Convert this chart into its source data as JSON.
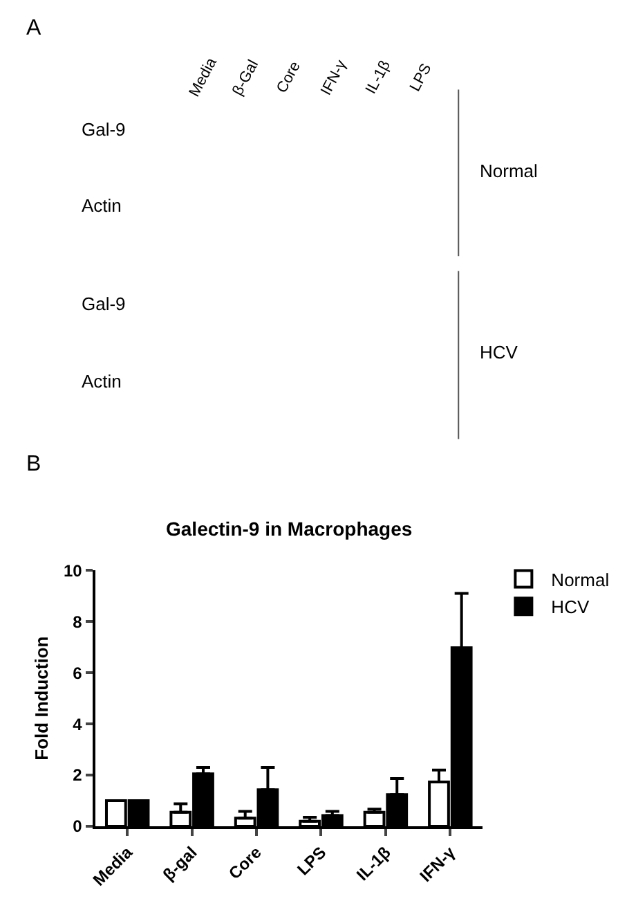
{
  "chart_data": [
    {
      "type": "other",
      "annotations": [
        "A",
        "Media",
        "β-Gal",
        "Core",
        "IFN-γ",
        "IL-1β",
        "LPS",
        "Gal-9",
        "Actin",
        "Gal-9",
        "Actin",
        "Normal",
        "HCV"
      ]
    },
    {
      "type": "bar",
      "title": "Galectin-9 in Macrophages",
      "ylabel": "Fold Induction",
      "annotations": [
        "B"
      ],
      "categories": [
        "Media",
        "β-gal",
        "Core",
        "LPS",
        "IL-1β",
        "IFN-γ"
      ],
      "series": [
        {
          "name": "Normal",
          "color": "#ffffff",
          "values": [
            1.0,
            0.55,
            0.32,
            0.2,
            0.55,
            1.73
          ],
          "errors": [
            null,
            [
              0.55,
              0.88
            ],
            [
              0.32,
              0.58
            ],
            [
              0.2,
              0.35
            ],
            [
              0.55,
              0.67
            ],
            [
              1.73,
              2.2
            ]
          ]
        },
        {
          "name": "HCV",
          "color": "#000000",
          "values": [
            1.0,
            2.05,
            1.43,
            0.42,
            1.24,
            6.98
          ],
          "errors": [
            null,
            [
              2.05,
              2.3
            ],
            [
              1.43,
              2.3
            ],
            [
              0.42,
              0.58
            ],
            [
              1.24,
              1.87
            ],
            [
              6.98,
              9.1
            ]
          ]
        }
      ],
      "ylim": [
        0,
        10
      ],
      "yticks": [
        0,
        2,
        4,
        6,
        8,
        10
      ],
      "legend": "top right"
    }
  ]
}
